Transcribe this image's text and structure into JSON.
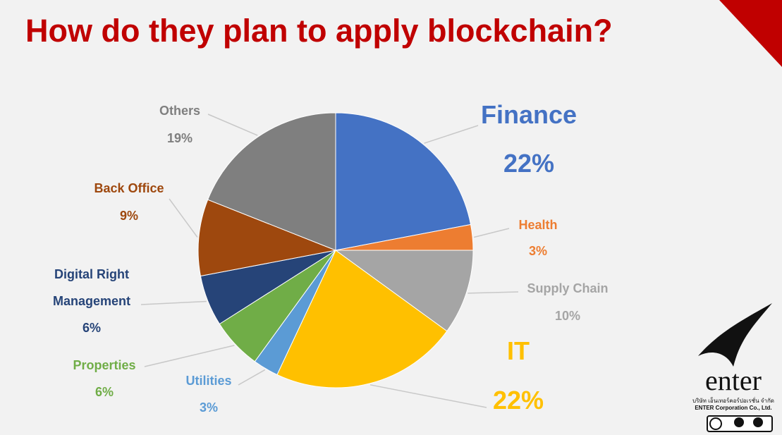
{
  "chart_data": {
    "type": "pie",
    "title": "How do they plan to apply blockchain?",
    "categories": [
      "Finance",
      "Health",
      "Supply Chain",
      "IT",
      "Utilities",
      "Properties",
      "Digital Right Management",
      "Back Office",
      "Others"
    ],
    "values": [
      22,
      3,
      10,
      22,
      3,
      6,
      6,
      9,
      19
    ],
    "value_labels": [
      "22%",
      "3%",
      "10%",
      "22%",
      "3%",
      "6%",
      "6%",
      "9%",
      "19%"
    ],
    "colors": [
      "#4472c4",
      "#ed7d31",
      "#a5a5a5",
      "#ffc000",
      "#5b9bd5",
      "#70ad47",
      "#264478",
      "#9e480e",
      "#7f7f7f"
    ]
  },
  "logo": {
    "name": "enter",
    "thai": "บริษัท เอ็นเทอร์คอร์ปอเรชั่น จำกัด",
    "company": "ENTER Corporation Co., Ltd."
  }
}
